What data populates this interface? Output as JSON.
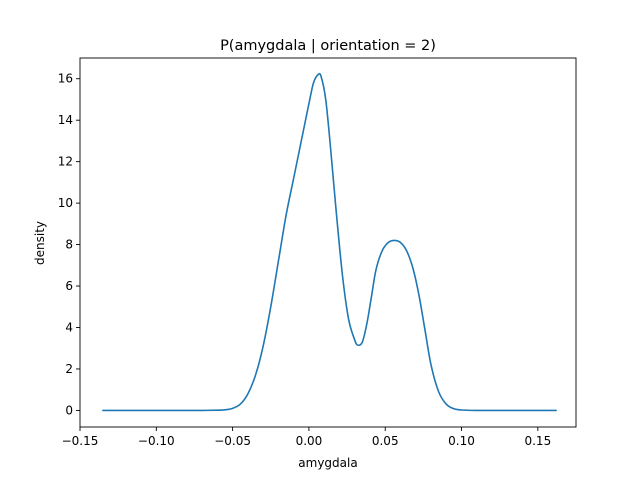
{
  "chart_data": {
    "type": "line",
    "title": "P(amygdala | orientation = 2)",
    "xlabel": "amygdala",
    "ylabel": "density",
    "xlim": [
      -0.15,
      0.175
    ],
    "ylim": [
      -0.8,
      17.0
    ],
    "xticks": [
      -0.15,
      -0.1,
      -0.05,
      0.0,
      0.05,
      0.1,
      0.15
    ],
    "xtick_labels": [
      "−0.15",
      "−0.10",
      "−0.05",
      "0.00",
      "0.05",
      "0.10",
      "0.15"
    ],
    "yticks": [
      0,
      2,
      4,
      6,
      8,
      10,
      12,
      14,
      16
    ],
    "ytick_labels": [
      "0",
      "2",
      "4",
      "6",
      "8",
      "10",
      "12",
      "14",
      "16"
    ],
    "grid": false,
    "series": [
      {
        "color": "#1f77b4",
        "x": [
          -0.135,
          -0.12,
          -0.1,
          -0.08,
          -0.07,
          -0.06,
          -0.055,
          -0.05,
          -0.045,
          -0.04,
          -0.035,
          -0.03,
          -0.025,
          -0.02,
          -0.015,
          -0.01,
          -0.005,
          0.0,
          0.003,
          0.006,
          0.008,
          0.011,
          0.014,
          0.018,
          0.022,
          0.026,
          0.03,
          0.032,
          0.035,
          0.038,
          0.041,
          0.044,
          0.048,
          0.052,
          0.056,
          0.06,
          0.064,
          0.068,
          0.072,
          0.076,
          0.08,
          0.085,
          0.09,
          0.095,
          0.1,
          0.11,
          0.12,
          0.14,
          0.162
        ],
        "y": [
          0.0,
          0.0,
          0.0,
          0.0,
          0.0,
          0.01,
          0.03,
          0.1,
          0.3,
          0.8,
          1.7,
          3.1,
          5.0,
          7.2,
          9.4,
          11.2,
          13.0,
          14.8,
          15.8,
          16.2,
          16.1,
          15.0,
          12.8,
          9.5,
          6.5,
          4.4,
          3.4,
          3.15,
          3.3,
          4.2,
          5.5,
          6.8,
          7.7,
          8.1,
          8.2,
          8.1,
          7.7,
          6.9,
          5.6,
          3.9,
          2.2,
          0.9,
          0.3,
          0.08,
          0.02,
          0.0,
          0.0,
          0.0,
          0.0
        ]
      }
    ]
  }
}
